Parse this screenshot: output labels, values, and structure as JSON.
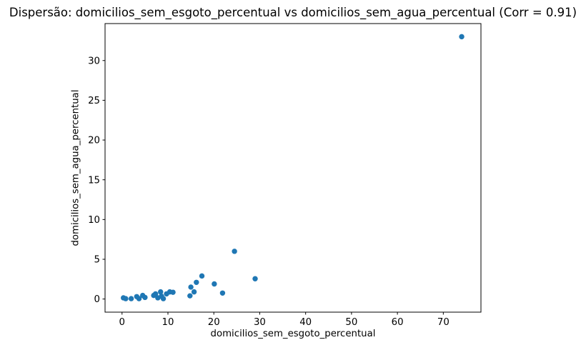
{
  "chart_data": {
    "type": "scatter",
    "title": "Dispersão: domicilios_sem_esgoto_percentual vs domicilios_sem_agua_percentual (Corr = 0.91)",
    "xlabel": "domicilios_sem_esgoto_percentual",
    "ylabel": "domicilios_sem_agua_percentual",
    "correlation": 0.91,
    "marker_color": "#1f77b4",
    "axis_color": "#000000",
    "background_color": "#ffffff",
    "grid": false,
    "legend": null,
    "xlim": [
      -3.7,
      78.2
    ],
    "ylim": [
      -1.65,
      34.65
    ],
    "xticks": [
      0,
      10,
      20,
      30,
      40,
      50,
      60,
      70
    ],
    "yticks": [
      0,
      5,
      10,
      15,
      20,
      25,
      30
    ],
    "points": [
      [
        0.3,
        0.15
      ],
      [
        0.8,
        0.05
      ],
      [
        2.0,
        0.05
      ],
      [
        3.2,
        0.3
      ],
      [
        3.7,
        0.05
      ],
      [
        4.5,
        0.45
      ],
      [
        5.0,
        0.2
      ],
      [
        6.9,
        0.45
      ],
      [
        7.3,
        0.65
      ],
      [
        7.8,
        0.15
      ],
      [
        8.4,
        0.9
      ],
      [
        8.6,
        0.35
      ],
      [
        9.0,
        0.05
      ],
      [
        9.7,
        0.65
      ],
      [
        10.4,
        0.9
      ],
      [
        11.1,
        0.85
      ],
      [
        14.8,
        0.4
      ],
      [
        15.0,
        1.5
      ],
      [
        15.7,
        0.9
      ],
      [
        16.2,
        2.1
      ],
      [
        17.4,
        2.9
      ],
      [
        20.1,
        1.9
      ],
      [
        21.9,
        0.75
      ],
      [
        24.5,
        6.0
      ],
      [
        29.0,
        2.55
      ],
      [
        74.0,
        33.0
      ]
    ]
  }
}
